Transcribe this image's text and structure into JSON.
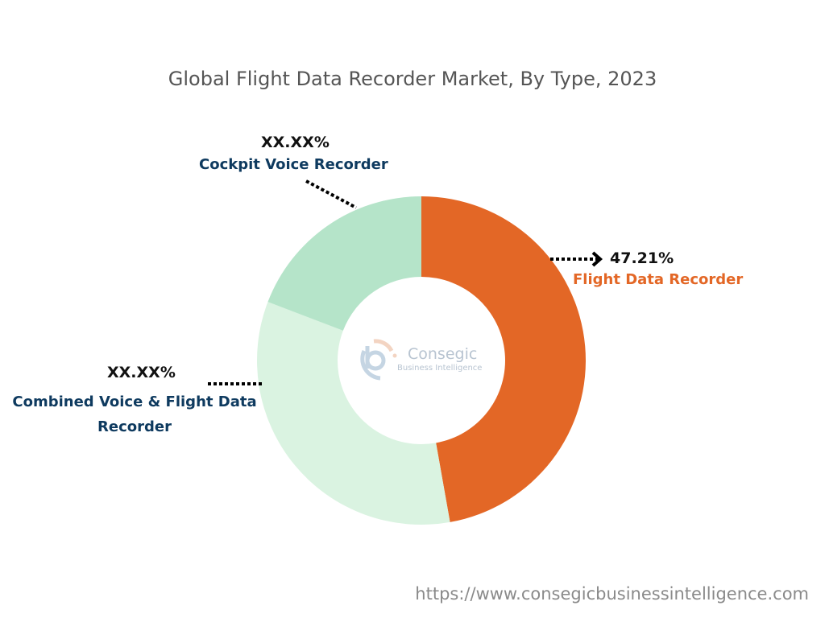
{
  "chart_data": {
    "type": "pie",
    "variant": "donut",
    "title": "Global Flight Data Recorder Market, By Type, 2023",
    "slices": [
      {
        "name": "Flight Data Recorder",
        "value": 47.21,
        "label": "47.21%",
        "color": "#E36726",
        "label_color": "#E36726"
      },
      {
        "name": "Combined Voice & Flight Data Recorder",
        "value": 33.6,
        "label": "XX.XX%",
        "color": "#DAF3E1",
        "label_color": "#0E3A5F"
      },
      {
        "name": "Cockpit Voice Recorder",
        "value": 19.19,
        "label": "XX.XX%",
        "color": "#B5E4C9",
        "label_color": "#0E3A5F"
      }
    ],
    "start_angle": "top",
    "direction": "clockwise"
  },
  "logo": {
    "name": "Consegic",
    "tagline": "Business Intelligence"
  },
  "footer": {
    "url": "https://www.consegicbusinessintelligence.com"
  }
}
